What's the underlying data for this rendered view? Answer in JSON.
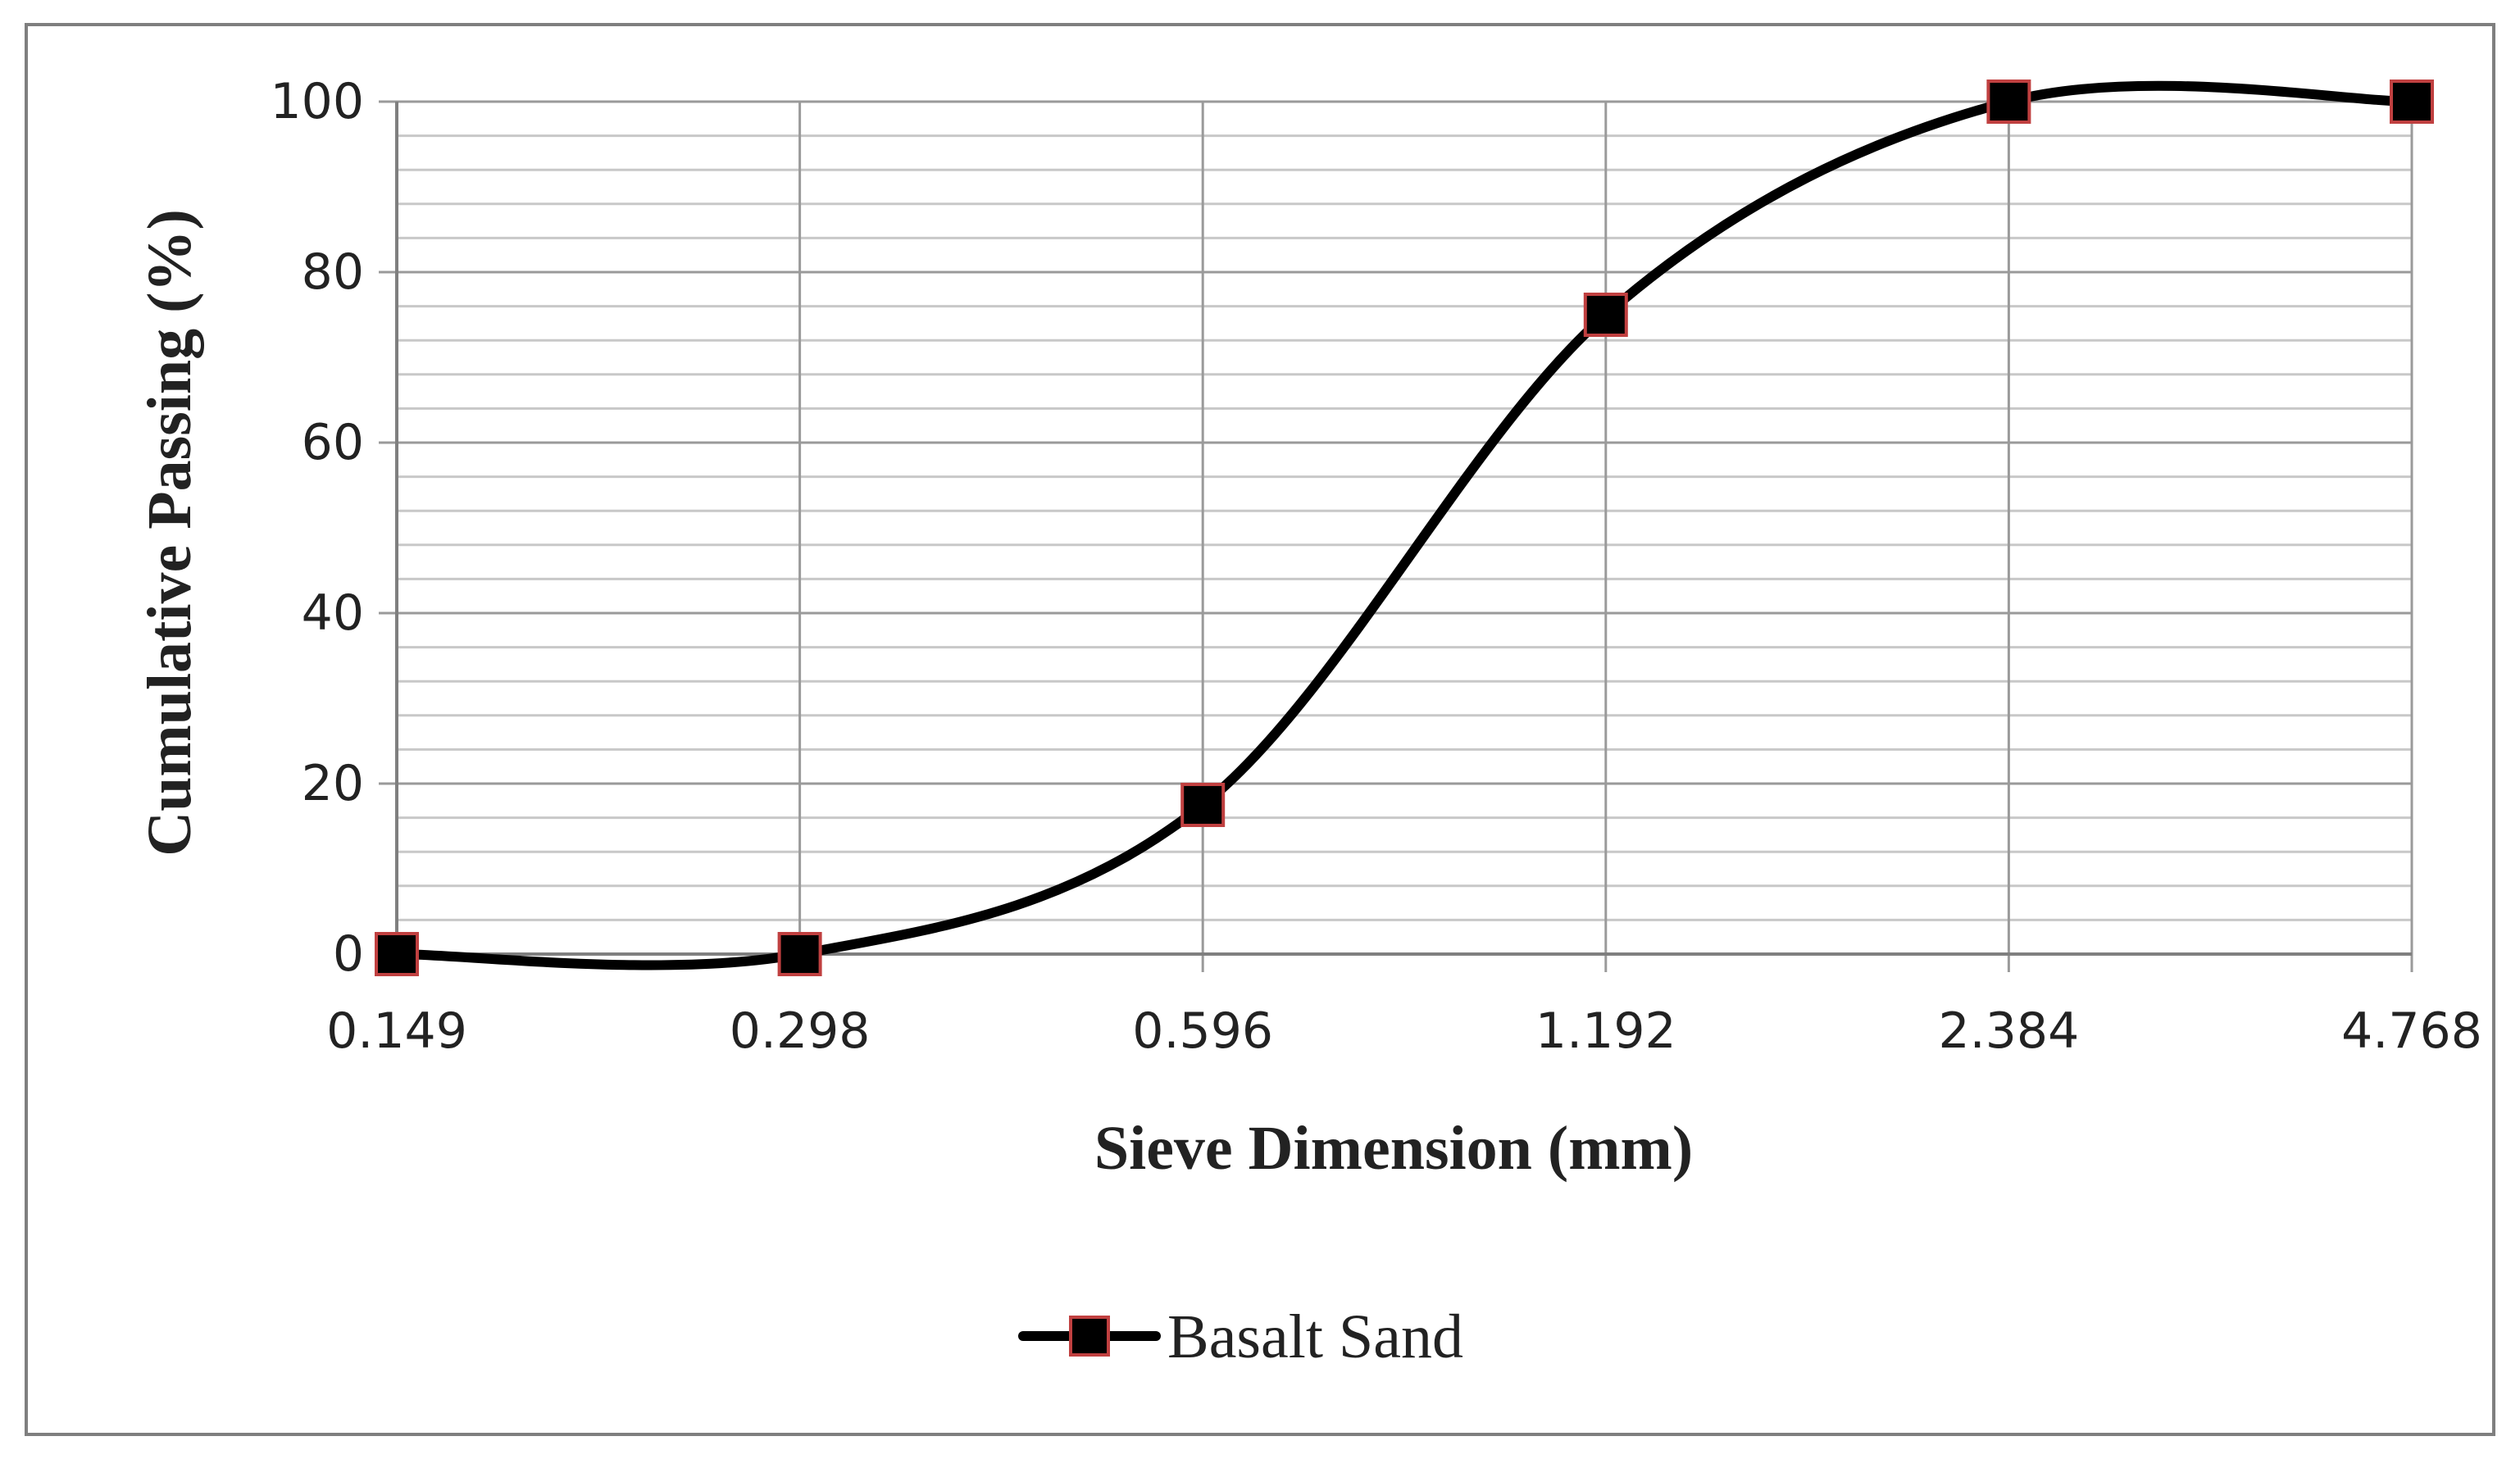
{
  "chart_data": {
    "type": "line",
    "categories": [
      "0.149",
      "0.298",
      "0.596",
      "1.192",
      "2.384",
      "4.768"
    ],
    "series": [
      {
        "name": "Basalt Sand",
        "values": [
          0,
          0,
          17.5,
          75,
          100,
          100
        ],
        "color": "#000000",
        "marker": "square",
        "marker_fill": "#000000",
        "marker_edge": "#c04040",
        "smooth": true
      }
    ],
    "xlabel": "Sieve Dimension (mm)",
    "ylabel": "Cumulative Passing (%)",
    "ylim": [
      0,
      100
    ],
    "y_ticks": [
      "0",
      "20",
      "40",
      "60",
      "80",
      "100"
    ],
    "y_major_step": 20,
    "y_minor_step": 4,
    "grid": true,
    "legend": "bottom-center"
  },
  "colors": {
    "frame": "#7f7f7f",
    "major_grid": "#9a9a9a",
    "minor_grid": "#c8c8c8"
  }
}
